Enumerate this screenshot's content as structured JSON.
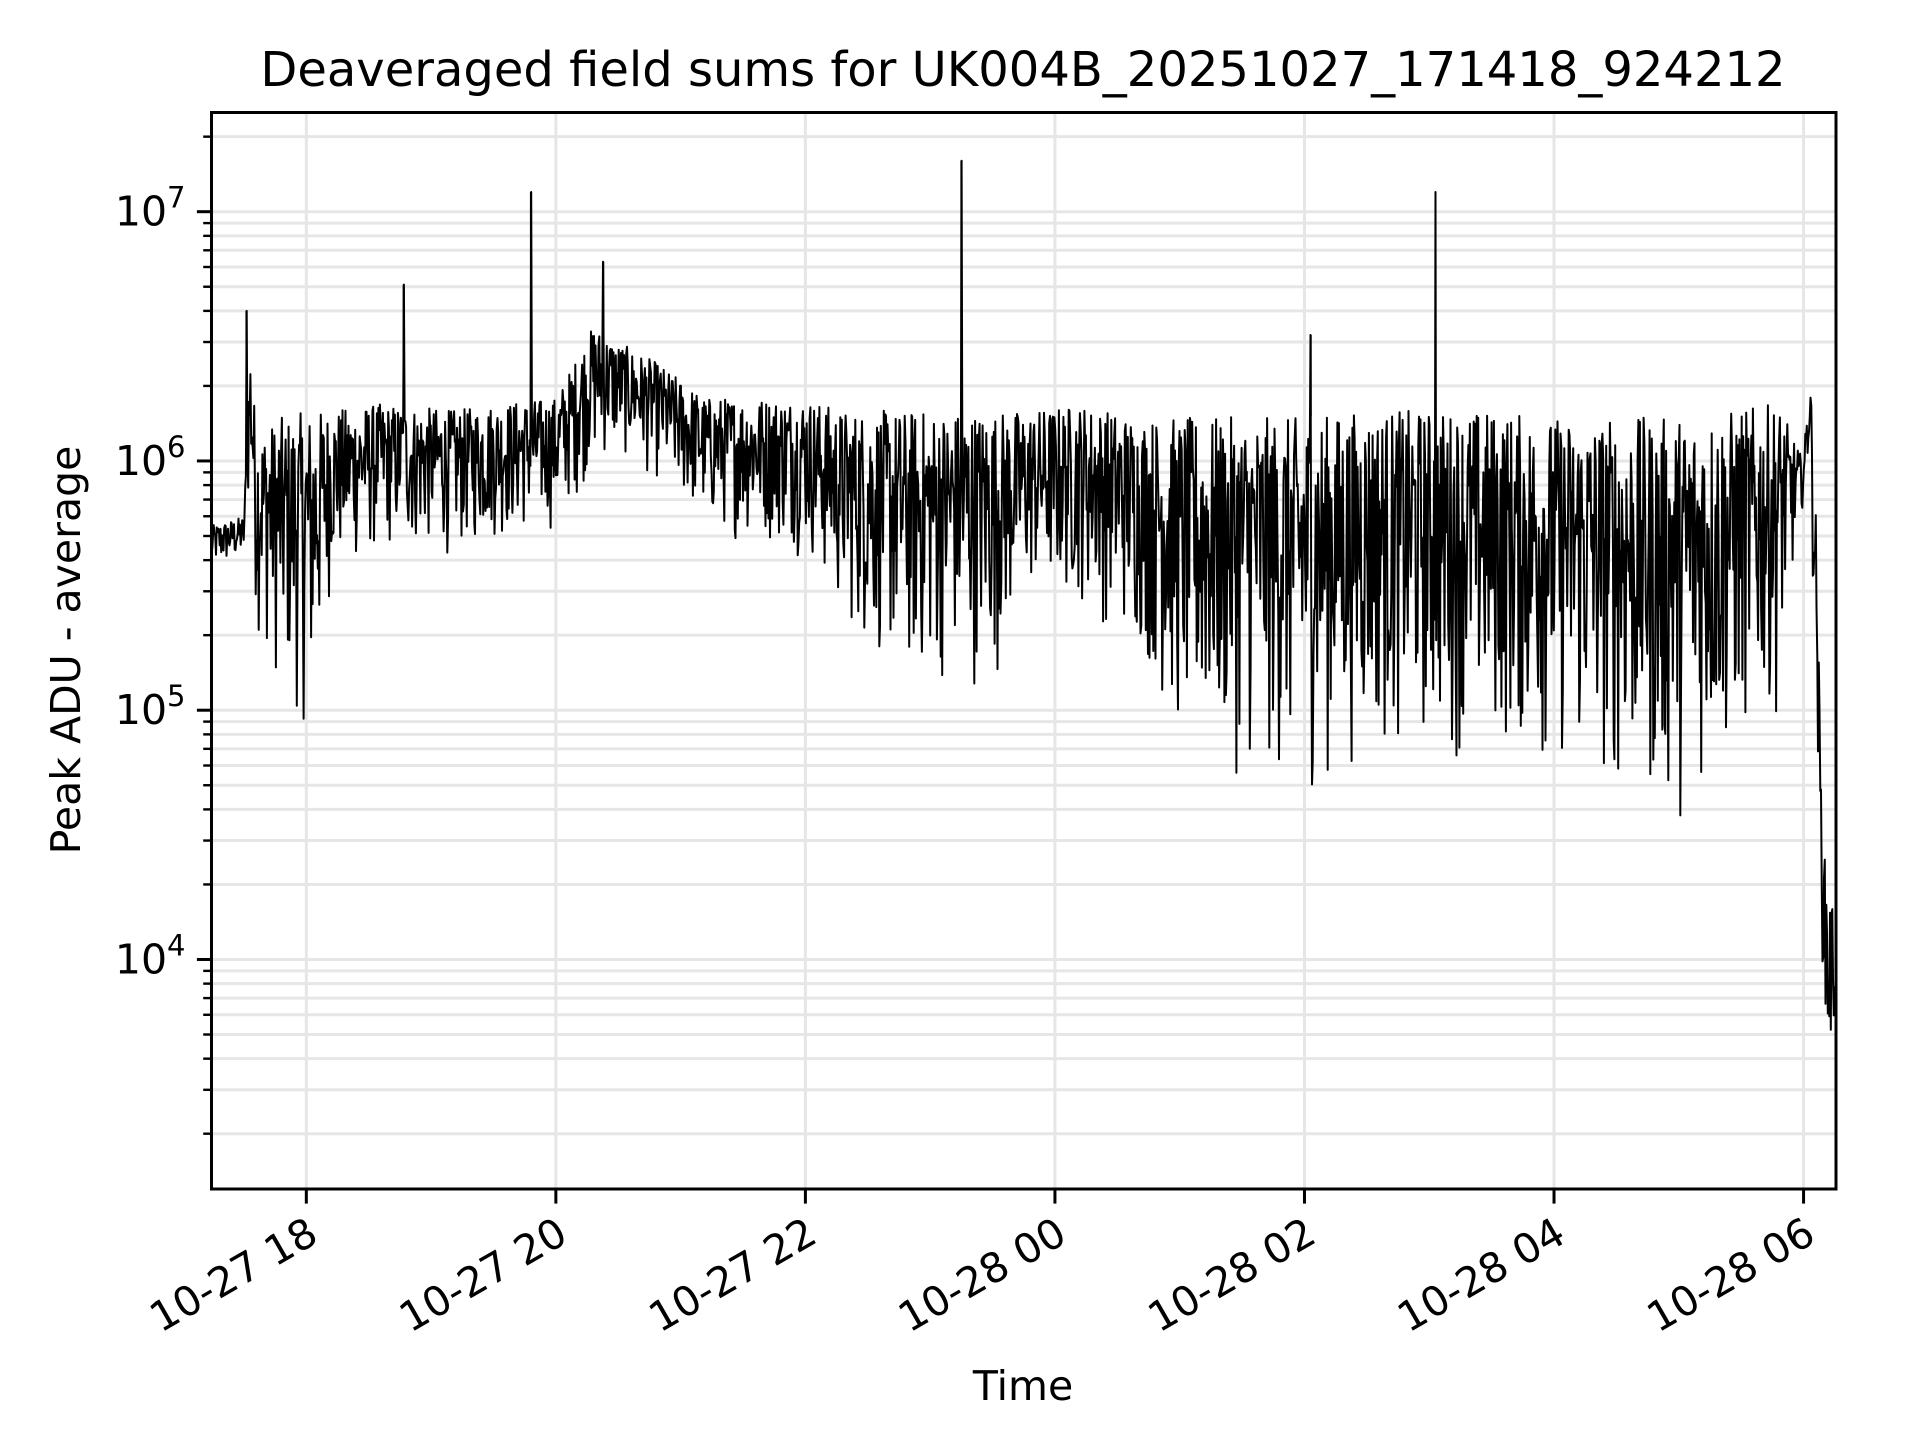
{
  "chart_data": {
    "type": "line",
    "title": "Deaveraged field sums for UK004B_20251027_171418_924212",
    "xlabel": "Time",
    "ylabel": "Peak ADU - average",
    "yscale": "log",
    "ylim": [
      1200,
      25000000
    ],
    "xlim_hours": [
      17.24,
      30.26
    ],
    "x_unit": "hours since 10-27 00:00",
    "grid": true,
    "line_color": "#000000",
    "grid_color": "#e6e6e6",
    "x_ticks": [
      {
        "hour": 18,
        "label": "10-27 18"
      },
      {
        "hour": 20,
        "label": "10-27 20"
      },
      {
        "hour": 22,
        "label": "10-27 22"
      },
      {
        "hour": 24,
        "label": "10-28 00"
      },
      {
        "hour": 26,
        "label": "10-28 02"
      },
      {
        "hour": 28,
        "label": "10-28 04"
      },
      {
        "hour": 30,
        "label": "10-28 06"
      }
    ],
    "y_ticks": [
      {
        "value": 10000,
        "base": "10",
        "exp": "4"
      },
      {
        "value": 100000,
        "base": "10",
        "exp": "5"
      },
      {
        "value": 1000000,
        "base": "10",
        "exp": "6"
      },
      {
        "value": 10000000,
        "base": "10",
        "exp": "7"
      }
    ],
    "envelope": {
      "hours": [
        17.24,
        17.5,
        17.55,
        17.6,
        17.8,
        18.05,
        18.2,
        18.6,
        19.2,
        19.5,
        20.0,
        20.3,
        20.5,
        20.8,
        21.2,
        21.6,
        22.0,
        22.3,
        22.8,
        23.5,
        23.8,
        24.2,
        24.7,
        25.0,
        25.5,
        26.0,
        26.5,
        27.0,
        27.5,
        28.0,
        28.5,
        28.9,
        29.4,
        29.8,
        30.0,
        30.05,
        30.1,
        30.15,
        30.2,
        30.26
      ],
      "upper": [
        550000,
        600000,
        3000000,
        1300000,
        1500000,
        1600000,
        1600000,
        1700000,
        1600000,
        1700000,
        1800000,
        3500000,
        3000000,
        2500000,
        1800000,
        1800000,
        1800000,
        1600000,
        1600000,
        1600000,
        1600000,
        1700000,
        1500000,
        1500000,
        1500000,
        1500000,
        1600000,
        1600000,
        1600000,
        1500000,
        1500000,
        1500000,
        1600000,
        1700000,
        1000000,
        2500000,
        600000,
        30000,
        20000,
        15000
      ],
      "lower": [
        350000,
        380000,
        700000,
        200000,
        100000,
        70000,
        300000,
        400000,
        400000,
        450000,
        500000,
        900000,
        1000000,
        800000,
        500000,
        450000,
        400000,
        200000,
        110000,
        120000,
        250000,
        250000,
        150000,
        60000,
        50000,
        40000,
        60000,
        60000,
        60000,
        50000,
        40000,
        30000,
        50000,
        100000,
        700000,
        900000,
        100000,
        10000,
        2000,
        5000
      ]
    },
    "spikes": [
      {
        "hour": 17.52,
        "value": 4000000
      },
      {
        "hour": 18.78,
        "value": 5100000
      },
      {
        "hour": 19.8,
        "value": 12000000
      },
      {
        "hour": 20.38,
        "value": 6300000
      },
      {
        "hour": 23.25,
        "value": 16000000
      },
      {
        "hour": 26.05,
        "value": 3200000
      },
      {
        "hour": 27.05,
        "value": 12000000
      }
    ]
  }
}
